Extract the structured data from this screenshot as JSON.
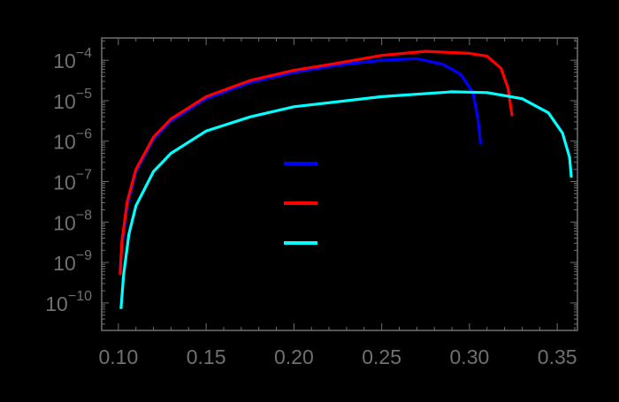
{
  "chart_data": {
    "type": "line",
    "title": "",
    "xlabel": "",
    "ylabel": "",
    "xscale": "linear",
    "yscale": "log",
    "xlim": [
      0.0905,
      0.3615
    ],
    "ylim_log10": [
      -10.68,
      -3.45
    ],
    "x_ticks": [
      "0.10",
      "0.15",
      "0.20",
      "0.25",
      "0.30",
      "0.35"
    ],
    "x_tick_values": [
      0.1,
      0.15,
      0.2,
      0.25,
      0.3,
      0.35
    ],
    "y_ticks": [
      "10^-4",
      "10^-5",
      "10^-6",
      "10^-7",
      "10^-8",
      "10^-9",
      "10^-10"
    ],
    "y_tick_exponents": [
      -4,
      -5,
      -6,
      -7,
      -8,
      -9,
      -10
    ],
    "grid": false,
    "frame_color": "#707070",
    "background": "#000000",
    "legend": {
      "position": "inside-center",
      "entries": [
        {
          "color": "#0000ff",
          "label": ""
        },
        {
          "color": "#ff0000",
          "label": ""
        },
        {
          "color": "#00ffff",
          "label": ""
        }
      ]
    },
    "series": [
      {
        "name": "blue",
        "color": "#0000ff",
        "x": [
          0.101,
          0.102,
          0.105,
          0.11,
          0.12,
          0.13,
          0.15,
          0.175,
          0.2,
          0.225,
          0.25,
          0.27,
          0.285,
          0.295,
          0.302,
          0.305,
          0.3063
        ],
        "log10_y": [
          -9.2,
          -8.6,
          -7.6,
          -6.75,
          -5.95,
          -5.5,
          -4.95,
          -4.55,
          -4.3,
          -4.12,
          -4.0,
          -3.96,
          -4.1,
          -4.35,
          -4.8,
          -5.5,
          -6.07
        ]
      },
      {
        "name": "red",
        "color": "#ff0000",
        "x": [
          0.101,
          0.102,
          0.105,
          0.11,
          0.12,
          0.13,
          0.15,
          0.175,
          0.2,
          0.225,
          0.25,
          0.275,
          0.3,
          0.31,
          0.318,
          0.322,
          0.3243
        ],
        "log10_y": [
          -9.3,
          -8.5,
          -7.5,
          -6.7,
          -5.9,
          -5.45,
          -4.9,
          -4.5,
          -4.25,
          -4.07,
          -3.88,
          -3.78,
          -3.83,
          -3.9,
          -4.2,
          -4.7,
          -5.38
        ]
      },
      {
        "name": "cyan",
        "color": "#00ffff",
        "x": [
          0.1015,
          0.103,
          0.106,
          0.11,
          0.12,
          0.13,
          0.15,
          0.175,
          0.2,
          0.25,
          0.29,
          0.31,
          0.33,
          0.345,
          0.353,
          0.357,
          0.358
        ],
        "log10_y": [
          -10.15,
          -9.3,
          -8.3,
          -7.6,
          -6.75,
          -6.3,
          -5.75,
          -5.4,
          -5.15,
          -4.9,
          -4.78,
          -4.8,
          -4.95,
          -5.3,
          -5.8,
          -6.4,
          -6.9
        ]
      }
    ]
  }
}
